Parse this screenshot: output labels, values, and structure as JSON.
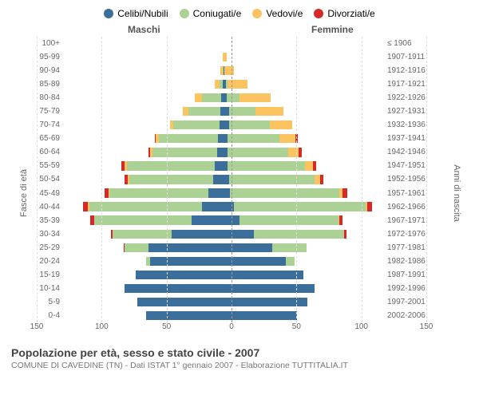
{
  "chart": {
    "type": "population-pyramid",
    "legend": [
      {
        "label": "Celibi/Nubili",
        "color": "#3b6e9a"
      },
      {
        "label": "Coniugati/e",
        "color": "#abd194"
      },
      {
        "label": "Vedovi/e",
        "color": "#fcc361"
      },
      {
        "label": "Divorziati/e",
        "color": "#d62a28"
      }
    ],
    "header_left": "Maschi",
    "header_right": "Femmine",
    "y_left_title": "Fasce di età",
    "y_right_title": "Anni di nascita",
    "x_max": 150,
    "x_ticks": [
      0,
      50,
      100,
      150
    ],
    "background_color": "#ffffff",
    "grid_color": "#dddddd",
    "bar_height_ratio": 0.78,
    "rows": [
      {
        "age": "100+",
        "birth": "≤ 1906",
        "male": {
          "cel": 0,
          "con": 0,
          "ved": 0,
          "div": 0
        },
        "female": {
          "cel": 0,
          "con": 0,
          "ved": 0,
          "div": 0
        }
      },
      {
        "age": "95-99",
        "birth": "1907-1911",
        "male": {
          "cel": 0,
          "con": 0,
          "ved": 1,
          "div": 0
        },
        "female": {
          "cel": 0,
          "con": 0,
          "ved": 3,
          "div": 0
        }
      },
      {
        "age": "90-94",
        "birth": "1912-1916",
        "male": {
          "cel": 0,
          "con": 1,
          "ved": 2,
          "div": 0
        },
        "female": {
          "cel": 1,
          "con": 0,
          "ved": 9,
          "div": 0
        }
      },
      {
        "age": "85-89",
        "birth": "1917-1921",
        "male": {
          "cel": 1,
          "con": 3,
          "ved": 4,
          "div": 0
        },
        "female": {
          "cel": 2,
          "con": 2,
          "ved": 18,
          "div": 0
        }
      },
      {
        "age": "80-84",
        "birth": "1922-1926",
        "male": {
          "cel": 2,
          "con": 18,
          "ved": 7,
          "div": 0
        },
        "female": {
          "cel": 3,
          "con": 12,
          "ved": 29,
          "div": 0
        }
      },
      {
        "age": "75-79",
        "birth": "1927-1931",
        "male": {
          "cel": 3,
          "con": 30,
          "ved": 5,
          "div": 0
        },
        "female": {
          "cel": 5,
          "con": 25,
          "ved": 26,
          "div": 0
        }
      },
      {
        "age": "70-74",
        "birth": "1932-1936",
        "male": {
          "cel": 4,
          "con": 43,
          "ved": 3,
          "div": 0
        },
        "female": {
          "cel": 5,
          "con": 38,
          "ved": 21,
          "div": 0
        }
      },
      {
        "age": "65-69",
        "birth": "1937-1941",
        "male": {
          "cel": 5,
          "con": 55,
          "ved": 3,
          "div": 1
        },
        "female": {
          "cel": 4,
          "con": 48,
          "ved": 15,
          "div": 2
        }
      },
      {
        "age": "60-64",
        "birth": "1942-1946",
        "male": {
          "cel": 6,
          "con": 60,
          "ved": 2,
          "div": 2
        },
        "female": {
          "cel": 4,
          "con": 56,
          "ved": 10,
          "div": 3
        }
      },
      {
        "age": "55-59",
        "birth": "1947-1951",
        "male": {
          "cel": 8,
          "con": 82,
          "ved": 2,
          "div": 3
        },
        "female": {
          "cel": 4,
          "con": 72,
          "ved": 7,
          "div": 3
        }
      },
      {
        "age": "50-54",
        "birth": "1952-1956",
        "male": {
          "cel": 10,
          "con": 78,
          "ved": 1,
          "div": 3
        },
        "female": {
          "cel": 5,
          "con": 80,
          "ved": 5,
          "div": 3
        }
      },
      {
        "age": "45-49",
        "birth": "1957-1961",
        "male": {
          "cel": 14,
          "con": 92,
          "ved": 1,
          "div": 4
        },
        "female": {
          "cel": 6,
          "con": 102,
          "ved": 3,
          "div": 4
        }
      },
      {
        "age": "40-44",
        "birth": "1962-1966",
        "male": {
          "cel": 20,
          "con": 105,
          "ved": 1,
          "div": 5
        },
        "female": {
          "cel": 10,
          "con": 122,
          "ved": 2,
          "div": 4
        }
      },
      {
        "age": "35-39",
        "birth": "1967-1971",
        "male": {
          "cel": 30,
          "con": 90,
          "ved": 0,
          "div": 4
        },
        "female": {
          "cel": 15,
          "con": 92,
          "ved": 1,
          "div": 3
        }
      },
      {
        "age": "30-34",
        "birth": "1972-1976",
        "male": {
          "cel": 48,
          "con": 55,
          "ved": 0,
          "div": 2
        },
        "female": {
          "cel": 28,
          "con": 84,
          "ved": 0,
          "div": 2
        }
      },
      {
        "age": "25-29",
        "birth": "1977-1981",
        "male": {
          "cel": 70,
          "con": 22,
          "ved": 0,
          "div": 1
        },
        "female": {
          "cel": 45,
          "con": 32,
          "ved": 0,
          "div": 0
        }
      },
      {
        "age": "20-24",
        "birth": "1982-1986",
        "male": {
          "cel": 68,
          "con": 4,
          "ved": 0,
          "div": 0
        },
        "female": {
          "cel": 58,
          "con": 8,
          "ved": 0,
          "div": 0
        }
      },
      {
        "age": "15-19",
        "birth": "1987-1991",
        "male": {
          "cel": 82,
          "con": 0,
          "ved": 0,
          "div": 0
        },
        "female": {
          "cel": 74,
          "con": 0,
          "ved": 0,
          "div": 0
        }
      },
      {
        "age": "10-14",
        "birth": "1992-1996",
        "male": {
          "cel": 92,
          "con": 0,
          "ved": 0,
          "div": 0
        },
        "female": {
          "cel": 85,
          "con": 0,
          "ved": 0,
          "div": 0
        }
      },
      {
        "age": "5-9",
        "birth": "1997-2001",
        "male": {
          "cel": 80,
          "con": 0,
          "ved": 0,
          "div": 0
        },
        "female": {
          "cel": 78,
          "con": 0,
          "ved": 0,
          "div": 0
        }
      },
      {
        "age": "0-4",
        "birth": "2002-2006",
        "male": {
          "cel": 72,
          "con": 0,
          "ved": 0,
          "div": 0
        },
        "female": {
          "cel": 68,
          "con": 0,
          "ved": 0,
          "div": 0
        }
      }
    ],
    "footer_title": "Popolazione per età, sesso e stato civile - 2007",
    "footer_sub": "COMUNE DI CAVEDINE (TN) - Dati ISTAT 1° gennaio 2007 - Elaborazione TUTTITALIA.IT"
  }
}
